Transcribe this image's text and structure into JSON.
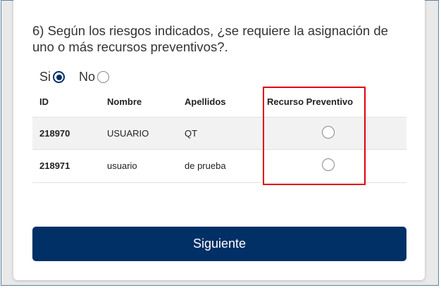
{
  "question": "6) Según los riesgos indicados, ¿se requiere la asignación de uno o más recursos preventivos?.",
  "options": [
    {
      "label": "Si",
      "selected": true
    },
    {
      "label": "No",
      "selected": false
    }
  ],
  "table": {
    "headers": [
      "ID",
      "Nombre",
      "Apellidos",
      "Recurso Preventivo"
    ],
    "rows": [
      {
        "id": "218970",
        "nombre": "USUARIO",
        "apellidos": "QT",
        "recurso_selected": false
      },
      {
        "id": "218971",
        "nombre": "usuario",
        "apellidos": "de prueba",
        "recurso_selected": false
      }
    ]
  },
  "highlight_color": "#e0000b",
  "accent_color": "#003066",
  "next_button": "Siguiente"
}
